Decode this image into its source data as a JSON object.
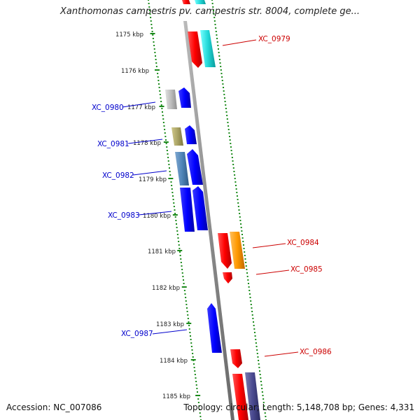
{
  "title": "Xanthomonas campestris pv. campestris str. 8004, complete ge...",
  "footer": {
    "accession": "Accession: NC_007086",
    "summary": "Topology: circular; Length: 5,148,708 bp; Genes: 4,331"
  },
  "colors": {
    "backbone": "#8c8c8c",
    "tick": "#1a8a1a",
    "label_forward": "#0000cc",
    "label_reverse": "#cc0000"
  },
  "ticks": [
    "1175 kbp",
    "1176 kbp",
    "1177 kbp",
    "1178 kbp",
    "1179 kbp",
    "1180 kbp",
    "1181 kbp",
    "1182 kbp",
    "1183 kbp",
    "1184 kbp",
    "1185 kbp"
  ],
  "gene_labels": {
    "xc0979": "XC_0979",
    "xc0980": "XC_0980",
    "xc0981": "XC_0981",
    "xc0982": "XC_0982",
    "xc0983": "XC_0983",
    "xc0984": "XC_0984",
    "xc0985": "XC_0985",
    "xc0986": "XC_0986",
    "xc0987": "XC_0987"
  }
}
